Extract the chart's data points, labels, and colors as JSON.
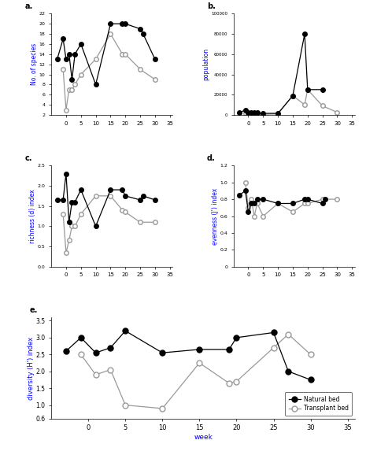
{
  "weeks_a": [
    -3,
    -1,
    0,
    1,
    2,
    3,
    5,
    10,
    15,
    19,
    20,
    25,
    26,
    30,
    32
  ],
  "natural_species": [
    13,
    17,
    13,
    14,
    9,
    14,
    16,
    8,
    20,
    20,
    20,
    19,
    18,
    13,
    null
  ],
  "transplant_species": [
    null,
    11,
    3,
    7,
    7,
    8,
    10,
    13,
    18,
    14,
    14,
    11,
    null,
    9,
    null
  ],
  "weeks_b": [
    -3,
    -1,
    0,
    1,
    2,
    3,
    5,
    10,
    15,
    19,
    20,
    25,
    26,
    30
  ],
  "natural_pop": [
    2000,
    5000,
    2500,
    2000,
    2000,
    2000,
    1500,
    1500,
    19000,
    80000,
    25000,
    25000,
    null,
    null
  ],
  "transplant_pop": [
    null,
    1500,
    1000,
    1000,
    1500,
    1000,
    500,
    1000,
    19000,
    10000,
    25000,
    9000,
    null,
    2500
  ],
  "weeks_c": [
    -3,
    -1,
    0,
    1,
    2,
    3,
    5,
    10,
    15,
    19,
    20,
    25,
    26,
    30,
    32
  ],
  "natural_richness": [
    1.65,
    1.65,
    2.3,
    1.1,
    1.6,
    1.6,
    1.9,
    1.0,
    1.9,
    1.9,
    1.75,
    1.65,
    1.75,
    1.65,
    null
  ],
  "transplant_richness": [
    null,
    1.3,
    0.35,
    0.65,
    1.0,
    1.0,
    1.3,
    1.75,
    1.75,
    1.4,
    1.35,
    1.1,
    null,
    1.1,
    null
  ],
  "weeks_d": [
    -3,
    -1,
    0,
    1,
    2,
    3,
    5,
    10,
    15,
    19,
    20,
    25,
    26,
    30
  ],
  "natural_evenness": [
    0.85,
    0.9,
    0.65,
    0.75,
    0.75,
    0.8,
    0.8,
    0.75,
    0.75,
    0.8,
    0.8,
    0.75,
    0.8,
    null
  ],
  "transplant_evenness": [
    null,
    1.0,
    0.7,
    0.8,
    0.6,
    0.75,
    0.6,
    0.75,
    0.65,
    0.75,
    0.75,
    0.8,
    null,
    0.8
  ],
  "weeks_e_nat": [
    -3,
    -1,
    1,
    3,
    5,
    10,
    15,
    19,
    20,
    25,
    27,
    30
  ],
  "natural_diversity": [
    2.6,
    3.0,
    2.55,
    2.7,
    3.2,
    2.55,
    2.65,
    2.65,
    3.0,
    3.15,
    2.0,
    1.75
  ],
  "weeks_e_trans": [
    -1,
    1,
    3,
    5,
    10,
    15,
    19,
    20,
    25,
    27,
    30
  ],
  "transplant_diversity": [
    2.5,
    1.9,
    2.05,
    1.0,
    0.9,
    2.25,
    1.65,
    1.7,
    2.7,
    3.1,
    2.5
  ],
  "color_natural": "#000000",
  "color_transplant": "#999999",
  "label_natural": "Natural bed",
  "label_transplant": "Transplant bed"
}
